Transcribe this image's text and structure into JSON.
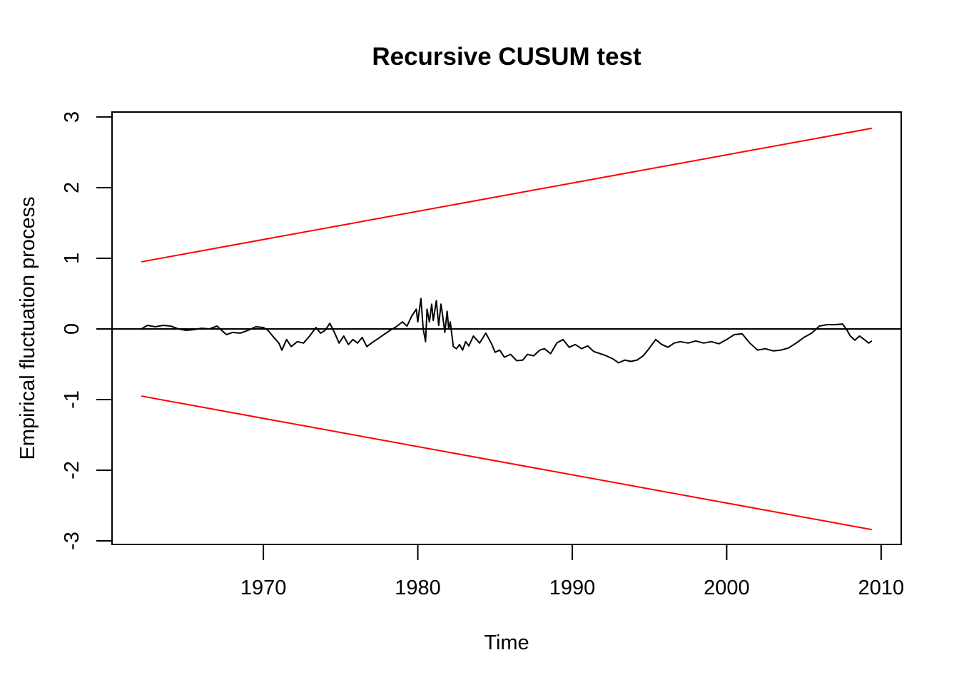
{
  "chart_data": {
    "type": "line",
    "title": "Recursive CUSUM test",
    "xlabel": "Time",
    "ylabel": "Empirical fluctuation process",
    "xlim": [
      1960.2,
      2011.3
    ],
    "ylim": [
      -3.05,
      3.07
    ],
    "x_ticks": [
      1970,
      1980,
      1990,
      2000,
      2010
    ],
    "x_tick_labels": [
      "1970",
      "1980",
      "1990",
      "2000",
      "2010"
    ],
    "y_ticks": [
      -3,
      -2,
      -1,
      0,
      1,
      2,
      3
    ],
    "y_tick_labels": [
      "-3",
      "-2",
      "-1",
      "0",
      "1",
      "2",
      "3"
    ],
    "grid": false,
    "reference_line": {
      "y": 0,
      "color": "#000000"
    },
    "boundaries": [
      {
        "x": [
          1962.1,
          2009.4
        ],
        "y": [
          0.95,
          2.84
        ],
        "color": "#ff0000"
      },
      {
        "x": [
          1962.1,
          2009.4
        ],
        "y": [
          -0.95,
          -2.84
        ],
        "color": "#ff0000"
      }
    ],
    "series": [
      {
        "color": "#000000",
        "x": [
          1962.1,
          1962.5,
          1963.0,
          1963.5,
          1964.0,
          1964.5,
          1965.0,
          1965.5,
          1966.0,
          1966.5,
          1967.0,
          1967.3,
          1967.6,
          1968.0,
          1968.5,
          1969.0,
          1969.5,
          1970.0,
          1970.3,
          1970.6,
          1971.0,
          1971.2,
          1971.5,
          1971.8,
          1972.2,
          1972.6,
          1973.0,
          1973.4,
          1973.7,
          1974.0,
          1974.3,
          1974.6,
          1974.9,
          1975.2,
          1975.5,
          1975.8,
          1976.1,
          1976.4,
          1976.7,
          1977.0,
          1977.4,
          1977.8,
          1978.2,
          1978.6,
          1979.0,
          1979.3,
          1979.6,
          1979.9,
          1980.0,
          1980.2,
          1980.35,
          1980.5,
          1980.6,
          1980.75,
          1980.9,
          1981.0,
          1981.2,
          1981.35,
          1981.5,
          1981.6,
          1981.75,
          1981.9,
          1982.0,
          1982.1,
          1982.3,
          1982.5,
          1982.7,
          1982.9,
          1983.1,
          1983.3,
          1983.6,
          1984.0,
          1984.4,
          1984.8,
          1985.0,
          1985.3,
          1985.6,
          1986.0,
          1986.4,
          1986.8,
          1987.1,
          1987.5,
          1987.9,
          1988.2,
          1988.6,
          1989.0,
          1989.4,
          1989.8,
          1990.2,
          1990.6,
          1991.0,
          1991.4,
          1991.8,
          1992.2,
          1992.6,
          1993.0,
          1993.4,
          1993.8,
          1994.2,
          1994.6,
          1995.0,
          1995.4,
          1995.8,
          1996.2,
          1996.6,
          1997.0,
          1997.5,
          1998.0,
          1998.5,
          1999.0,
          1999.5,
          2000.0,
          2000.5,
          2001.0,
          2001.5,
          2002.0,
          2002.5,
          2003.0,
          2003.5,
          2004.0,
          2004.5,
          2005.0,
          2005.5,
          2006.0,
          2006.5,
          2007.0,
          2007.5,
          2007.8,
          2008.0,
          2008.3,
          2008.6,
          2008.9,
          2009.2,
          2009.4
        ],
        "y": [
          0.0,
          0.05,
          0.03,
          0.05,
          0.04,
          0.0,
          -0.02,
          -0.01,
          0.01,
          0.0,
          0.04,
          -0.02,
          -0.08,
          -0.05,
          -0.06,
          -0.02,
          0.03,
          0.02,
          -0.02,
          -0.1,
          -0.2,
          -0.3,
          -0.15,
          -0.25,
          -0.18,
          -0.2,
          -0.1,
          0.02,
          -0.06,
          -0.02,
          0.08,
          -0.05,
          -0.2,
          -0.1,
          -0.22,
          -0.15,
          -0.2,
          -0.12,
          -0.25,
          -0.2,
          -0.14,
          -0.08,
          -0.02,
          0.03,
          0.1,
          0.04,
          0.18,
          0.28,
          0.1,
          0.43,
          0.0,
          -0.18,
          0.28,
          0.1,
          0.35,
          0.12,
          0.4,
          0.05,
          0.35,
          0.2,
          -0.05,
          0.25,
          0.0,
          0.1,
          -0.25,
          -0.28,
          -0.22,
          -0.3,
          -0.18,
          -0.24,
          -0.1,
          -0.2,
          -0.06,
          -0.22,
          -0.33,
          -0.3,
          -0.4,
          -0.36,
          -0.45,
          -0.44,
          -0.36,
          -0.38,
          -0.3,
          -0.28,
          -0.35,
          -0.2,
          -0.15,
          -0.26,
          -0.22,
          -0.28,
          -0.24,
          -0.32,
          -0.35,
          -0.38,
          -0.42,
          -0.48,
          -0.44,
          -0.46,
          -0.44,
          -0.38,
          -0.27,
          -0.15,
          -0.22,
          -0.26,
          -0.2,
          -0.18,
          -0.2,
          -0.17,
          -0.2,
          -0.18,
          -0.21,
          -0.15,
          -0.08,
          -0.07,
          -0.2,
          -0.3,
          -0.28,
          -0.31,
          -0.3,
          -0.27,
          -0.2,
          -0.12,
          -0.06,
          0.04,
          0.06,
          0.06,
          0.07,
          -0.02,
          -0.1,
          -0.16,
          -0.1,
          -0.15,
          -0.2,
          -0.17
        ]
      }
    ]
  }
}
